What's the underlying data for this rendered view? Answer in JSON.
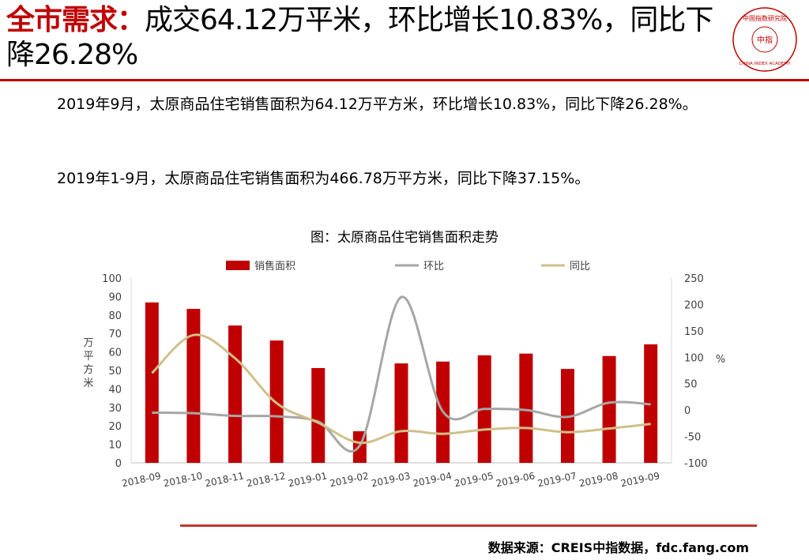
{
  "header": {
    "keyword": "全市需求：",
    "headline": "成交64.12万平米，环比增长10.83%，同比下降26.28%",
    "logo": {
      "top_text": "中国指数研究院",
      "center_text": "中指",
      "bottom_text": "CHINA INDEX ACADEMY",
      "color": "#c00000"
    }
  },
  "body": {
    "paragraph1": "2019年9月，太原商品住宅销售面积为64.12万平方米，环比增长10.83%，同比下降26.28%。",
    "paragraph2": "2019年1-9月，太原商品住宅销售面积为466.78万平方米，同比下降37.15%。"
  },
  "chart_title": "图：太原商品住宅销售面积走势",
  "chart_data": {
    "type": "bar",
    "categories": [
      "2018-09",
      "2018-10",
      "2018-11",
      "2018-12",
      "2019-01",
      "2019-02",
      "2019-03",
      "2019-04",
      "2019-05",
      "2019-06",
      "2019-07",
      "2019-08",
      "2019-09"
    ],
    "series": [
      {
        "name": "销售面积",
        "type": "bar",
        "axis": "left",
        "color": "#c00000",
        "values": [
          86.8,
          83.3,
          74.3,
          66.2,
          51.3,
          17.1,
          53.8,
          54.8,
          58.2,
          59.1,
          50.8,
          57.8,
          64.12
        ]
      },
      {
        "name": "环比",
        "type": "line",
        "axis": "right",
        "color": "#a6a6a6",
        "values": [
          -5,
          -6,
          -11,
          -12,
          -22,
          -67,
          214,
          -3,
          2,
          0,
          -13,
          14,
          10.83
        ]
      },
      {
        "name": "同比",
        "type": "line",
        "axis": "right",
        "color": "#cfc08a",
        "values": [
          70,
          142,
          98,
          13,
          -24,
          -62,
          -40,
          -45,
          -37,
          -34,
          -42,
          -35,
          -26.28
        ]
      }
    ],
    "ylabel_left": "万平方米",
    "ylabel_right": "%",
    "ylim_left": [
      0,
      100
    ],
    "ylim_right": [
      -100,
      250
    ],
    "yticks_left": [
      0,
      10,
      20,
      30,
      40,
      50,
      60,
      70,
      80,
      90,
      100
    ],
    "yticks_right": [
      -100,
      -50,
      0,
      50,
      100,
      150,
      200,
      250
    ],
    "legend_position": "top",
    "grid": false
  },
  "source": "数据来源：CREIS中指数据，fdc.fang.com"
}
